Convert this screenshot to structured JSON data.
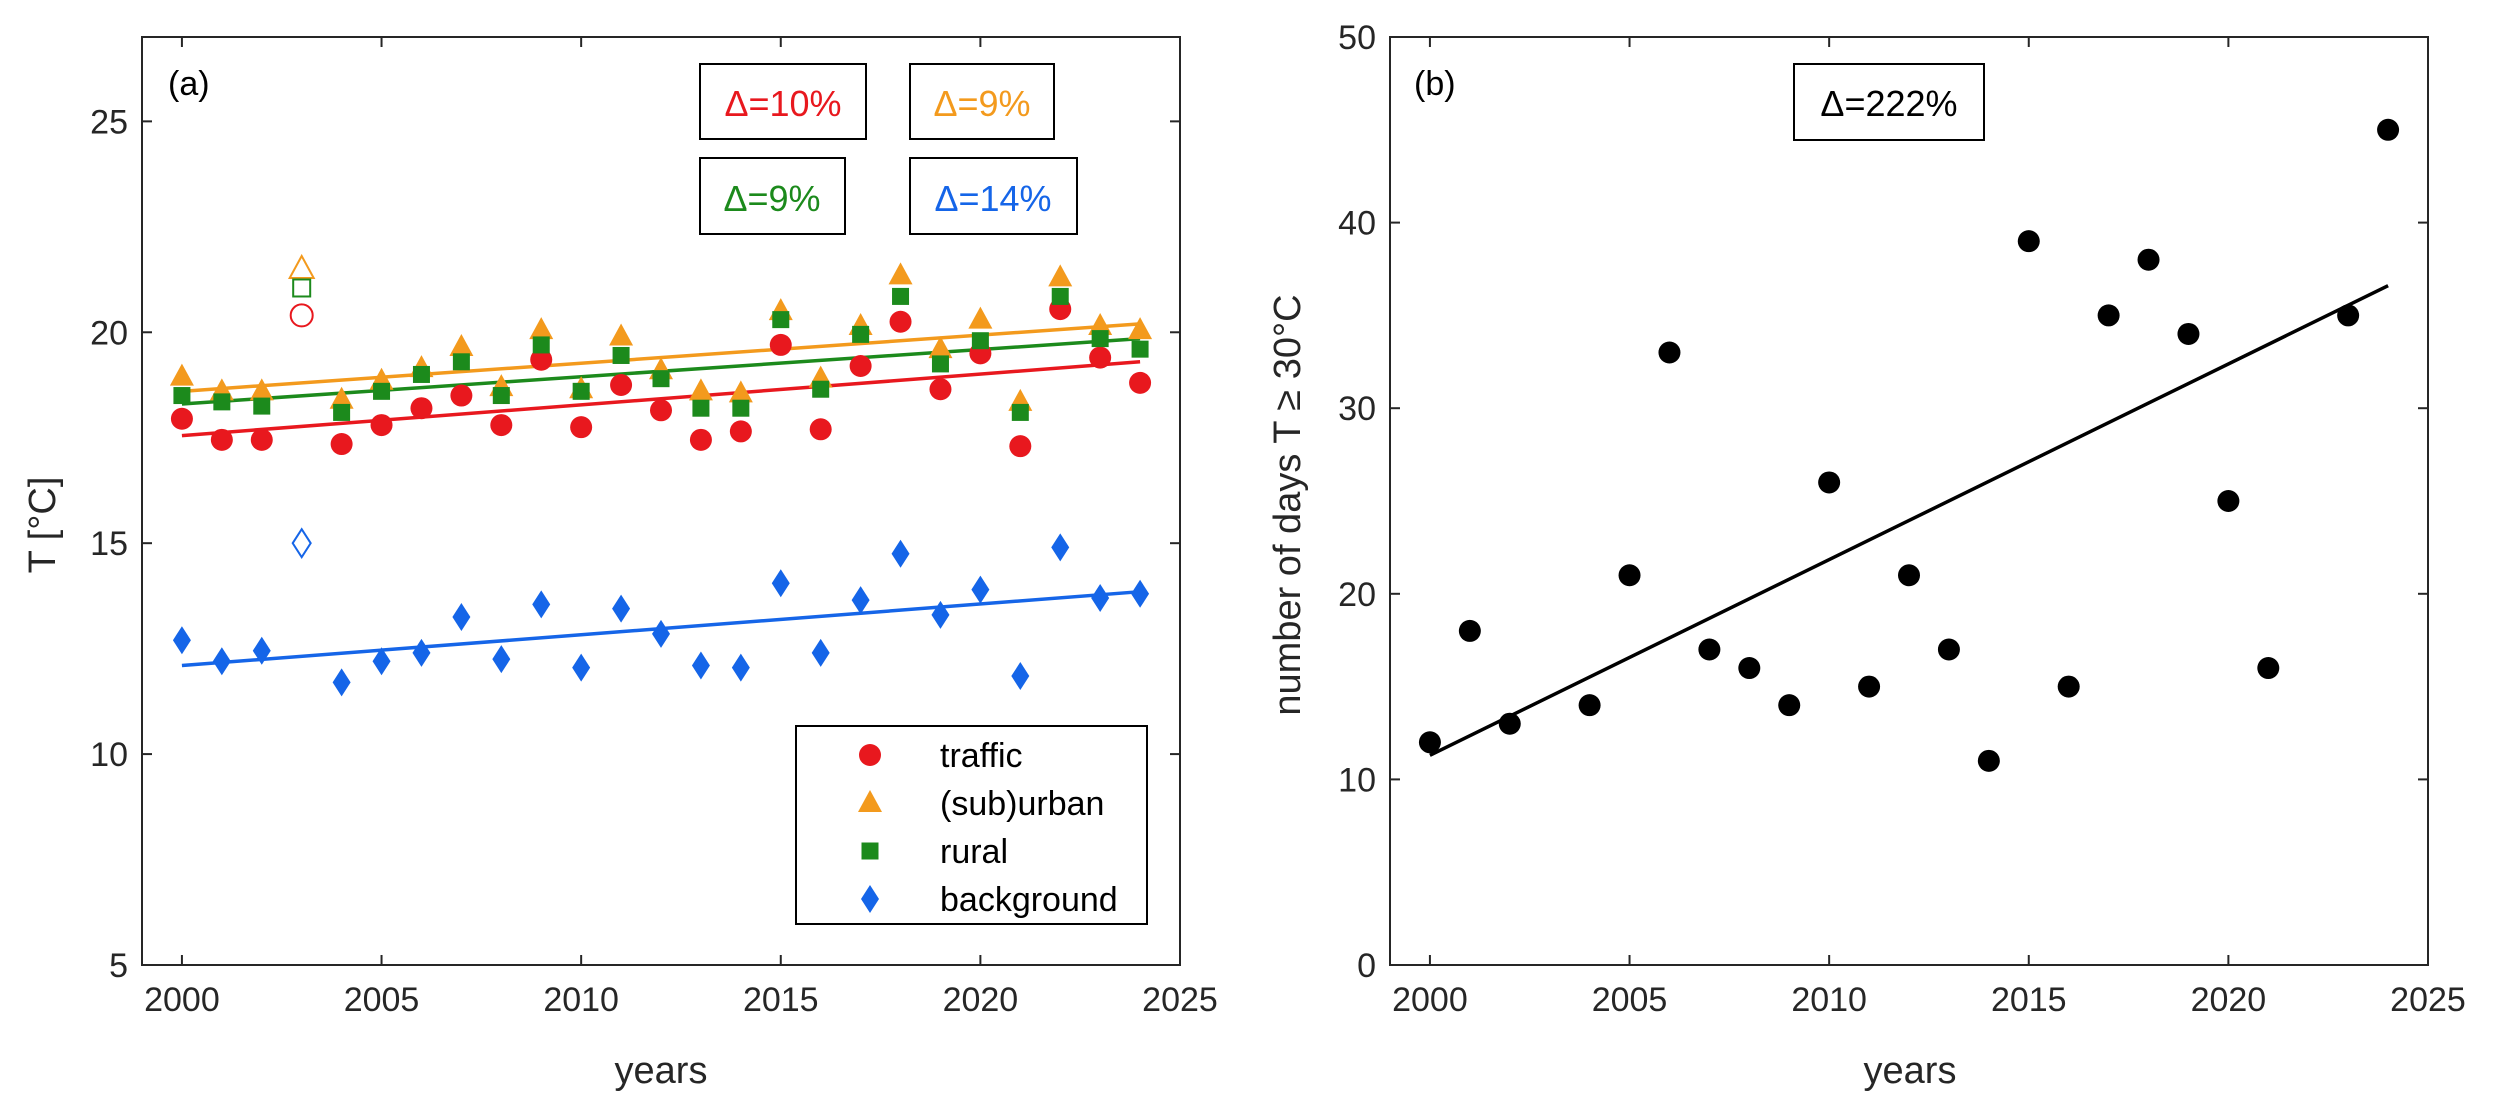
{
  "chart_data": [
    {
      "type": "scatter",
      "panel_label": "(a)",
      "xlabel": "years",
      "ylabel": "T [°C]",
      "xlim": [
        1999,
        2025
      ],
      "ylim": [
        5,
        27
      ],
      "xticks": [
        "2000",
        "2005",
        "2010",
        "2015",
        "2020",
        "2025"
      ],
      "yticks": [
        "5",
        "10",
        "15",
        "20",
        "25"
      ],
      "legend_position": "bottom-right",
      "annotations": [
        {
          "text": "Δ=10%",
          "color": "#e8181e"
        },
        {
          "text": "Δ=9%",
          "color": "#f39a1d"
        },
        {
          "text": "Δ=9%",
          "color": "#1c8a1c"
        },
        {
          "text": "Δ=14%",
          "color": "#1565e8"
        }
      ],
      "series": [
        {
          "name": "traffic",
          "marker": "circle",
          "color": "#e8181e",
          "x": [
            2000,
            2001,
            2002,
            2004,
            2005,
            2006,
            2007,
            2008,
            2009,
            2010,
            2011,
            2012,
            2013,
            2014,
            2015,
            2016,
            2017,
            2018,
            2019,
            2020,
            2021,
            2022,
            2023,
            2024
          ],
          "y": [
            17.95,
            17.45,
            17.45,
            17.35,
            17.8,
            18.2,
            18.5,
            17.8,
            19.35,
            17.75,
            18.75,
            18.15,
            17.45,
            17.65,
            19.7,
            17.7,
            19.2,
            20.25,
            18.65,
            19.5,
            17.3,
            20.55,
            19.4,
            18.8
          ],
          "outlier": {
            "x": 2003,
            "y": 20.4
          },
          "trend": {
            "x": [
              2000,
              2024
            ],
            "y": [
              17.55,
              19.3
            ]
          }
        },
        {
          "name": "(sub)urban",
          "marker": "triangle",
          "color": "#f39a1d",
          "x": [
            2000,
            2001,
            2002,
            2004,
            2005,
            2006,
            2007,
            2008,
            2009,
            2010,
            2011,
            2012,
            2013,
            2014,
            2015,
            2016,
            2017,
            2018,
            2019,
            2020,
            2021,
            2022,
            2023,
            2024
          ],
          "y": [
            18.95,
            18.6,
            18.6,
            18.4,
            18.85,
            19.15,
            19.65,
            18.7,
            20.05,
            18.65,
            19.9,
            19.1,
            18.6,
            18.55,
            20.5,
            18.9,
            20.15,
            21.35,
            19.6,
            20.3,
            18.35,
            21.3,
            20.15,
            20.05
          ],
          "outlier": {
            "x": 2003,
            "y": 21.5
          },
          "trend": {
            "x": [
              2000,
              2024
            ],
            "y": [
              18.6,
              20.2
            ]
          }
        },
        {
          "name": "rural",
          "marker": "square",
          "color": "#1c8a1c",
          "x": [
            2000,
            2001,
            2002,
            2004,
            2005,
            2006,
            2007,
            2008,
            2009,
            2010,
            2011,
            2012,
            2013,
            2014,
            2015,
            2016,
            2017,
            2018,
            2019,
            2020,
            2021,
            2022,
            2023,
            2024
          ],
          "y": [
            18.5,
            18.35,
            18.25,
            18.1,
            18.6,
            19.0,
            19.3,
            18.5,
            19.7,
            18.6,
            19.45,
            18.9,
            18.2,
            18.2,
            20.3,
            18.65,
            19.95,
            20.85,
            19.25,
            19.8,
            18.1,
            20.85,
            19.85,
            19.6
          ],
          "outlier": {
            "x": 2003,
            "y": 21.05
          },
          "trend": {
            "x": [
              2000,
              2024
            ],
            "y": [
              18.3,
              19.85
            ]
          }
        },
        {
          "name": "background",
          "marker": "diamond",
          "color": "#1565e8",
          "x": [
            2000,
            2001,
            2002,
            2004,
            2005,
            2006,
            2007,
            2008,
            2009,
            2010,
            2011,
            2012,
            2013,
            2014,
            2015,
            2016,
            2017,
            2018,
            2019,
            2020,
            2021,
            2022,
            2023,
            2024
          ],
          "y": [
            12.7,
            12.2,
            12.45,
            11.7,
            12.2,
            12.4,
            13.25,
            12.25,
            13.55,
            12.05,
            13.45,
            12.85,
            12.1,
            12.05,
            14.05,
            12.4,
            13.65,
            14.75,
            13.3,
            13.9,
            11.85,
            14.9,
            13.7,
            13.8
          ],
          "outlier": {
            "x": 2003,
            "y": 15.0
          },
          "trend": {
            "x": [
              2000,
              2024
            ],
            "y": [
              12.1,
              13.85
            ]
          }
        }
      ]
    },
    {
      "type": "scatter",
      "panel_label": "(b)",
      "xlabel": "years",
      "ylabel": "number of days T ≥ 30°C",
      "xlim": [
        1999,
        2025
      ],
      "ylim": [
        0,
        50
      ],
      "xticks": [
        "2000",
        "2005",
        "2010",
        "2015",
        "2020",
        "2025"
      ],
      "yticks": [
        "0",
        "10",
        "20",
        "30",
        "40",
        "50"
      ],
      "annotations": [
        {
          "text": "Δ=222%",
          "color": "#000000"
        }
      ],
      "series": [
        {
          "marker": "circle",
          "color": "#000000",
          "x": [
            2000,
            2001,
            2002,
            2004,
            2005,
            2006,
            2007,
            2008,
            2009,
            2010,
            2011,
            2012,
            2013,
            2014,
            2015,
            2016,
            2017,
            2018,
            2019,
            2020,
            2021,
            2023,
            2024
          ],
          "y": [
            12,
            18,
            13,
            14,
            21,
            33,
            17,
            16,
            14,
            26,
            15,
            21,
            17,
            11,
            39,
            15,
            35,
            38,
            34,
            25,
            16,
            35,
            45
          ],
          "trend": {
            "x": [
              2000,
              2024
            ],
            "y": [
              11.3,
              36.6
            ]
          }
        }
      ]
    }
  ]
}
